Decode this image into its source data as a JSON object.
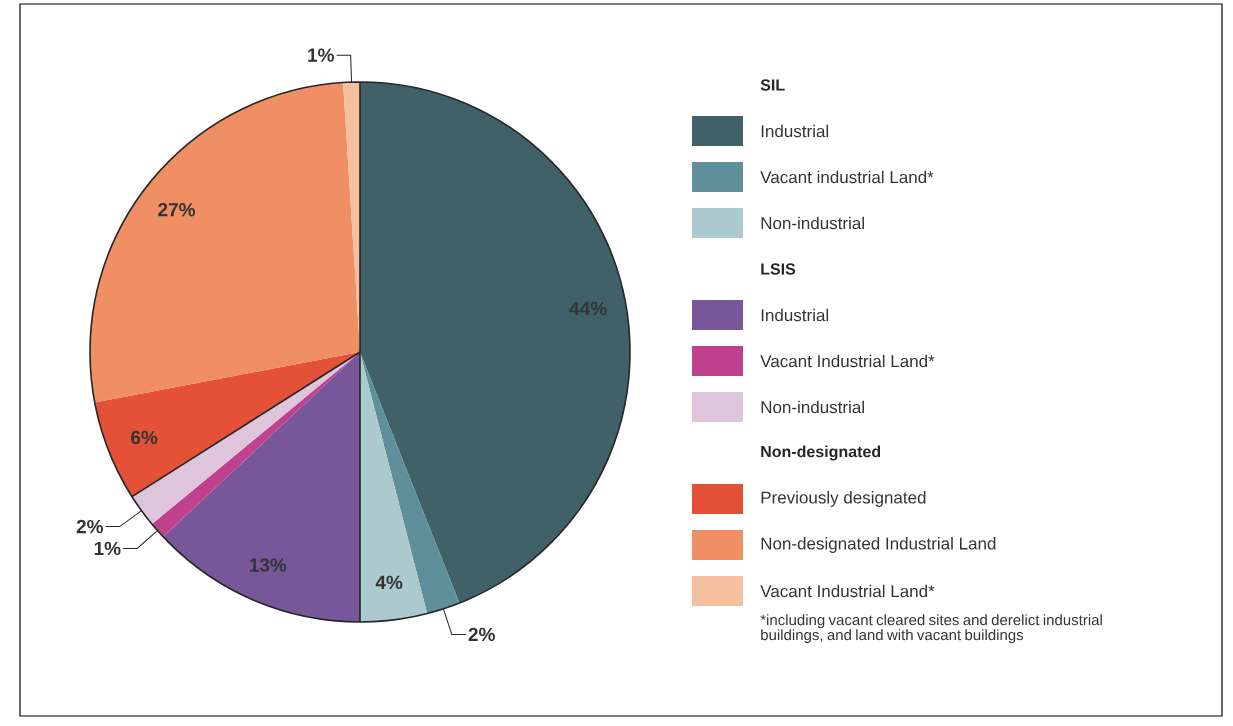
{
  "chart_data": {
    "type": "pie",
    "categories": [
      "Industrial",
      "Vacant industrial Land*",
      "Non-industrial",
      "Industrial",
      "Vacant Industrial Land*",
      "Non-industrial",
      "Previously designated",
      "Non-designated Industrial Land",
      "Vacant Industrial Land*"
    ],
    "values": [
      44,
      2,
      4,
      13,
      1,
      2,
      6,
      27,
      1
    ],
    "colors": [
      "#416169",
      "#5f8f99",
      "#acc9cd",
      "#77579a",
      "#c0428f",
      "#dfc5dc",
      "#e55137",
      "#ef8f63",
      "#f4c0a0"
    ],
    "value_labels": [
      "44%",
      "2%",
      "4%",
      "13%",
      "1%",
      "2%",
      "6%",
      "27%",
      "1%"
    ],
    "legend": "right",
    "annotations": [
      "SIL",
      "LSIS",
      "Non-designated",
      "*including vacant cleared sites and derelict industrial buildings, and land with vacant buildings"
    ]
  }
}
